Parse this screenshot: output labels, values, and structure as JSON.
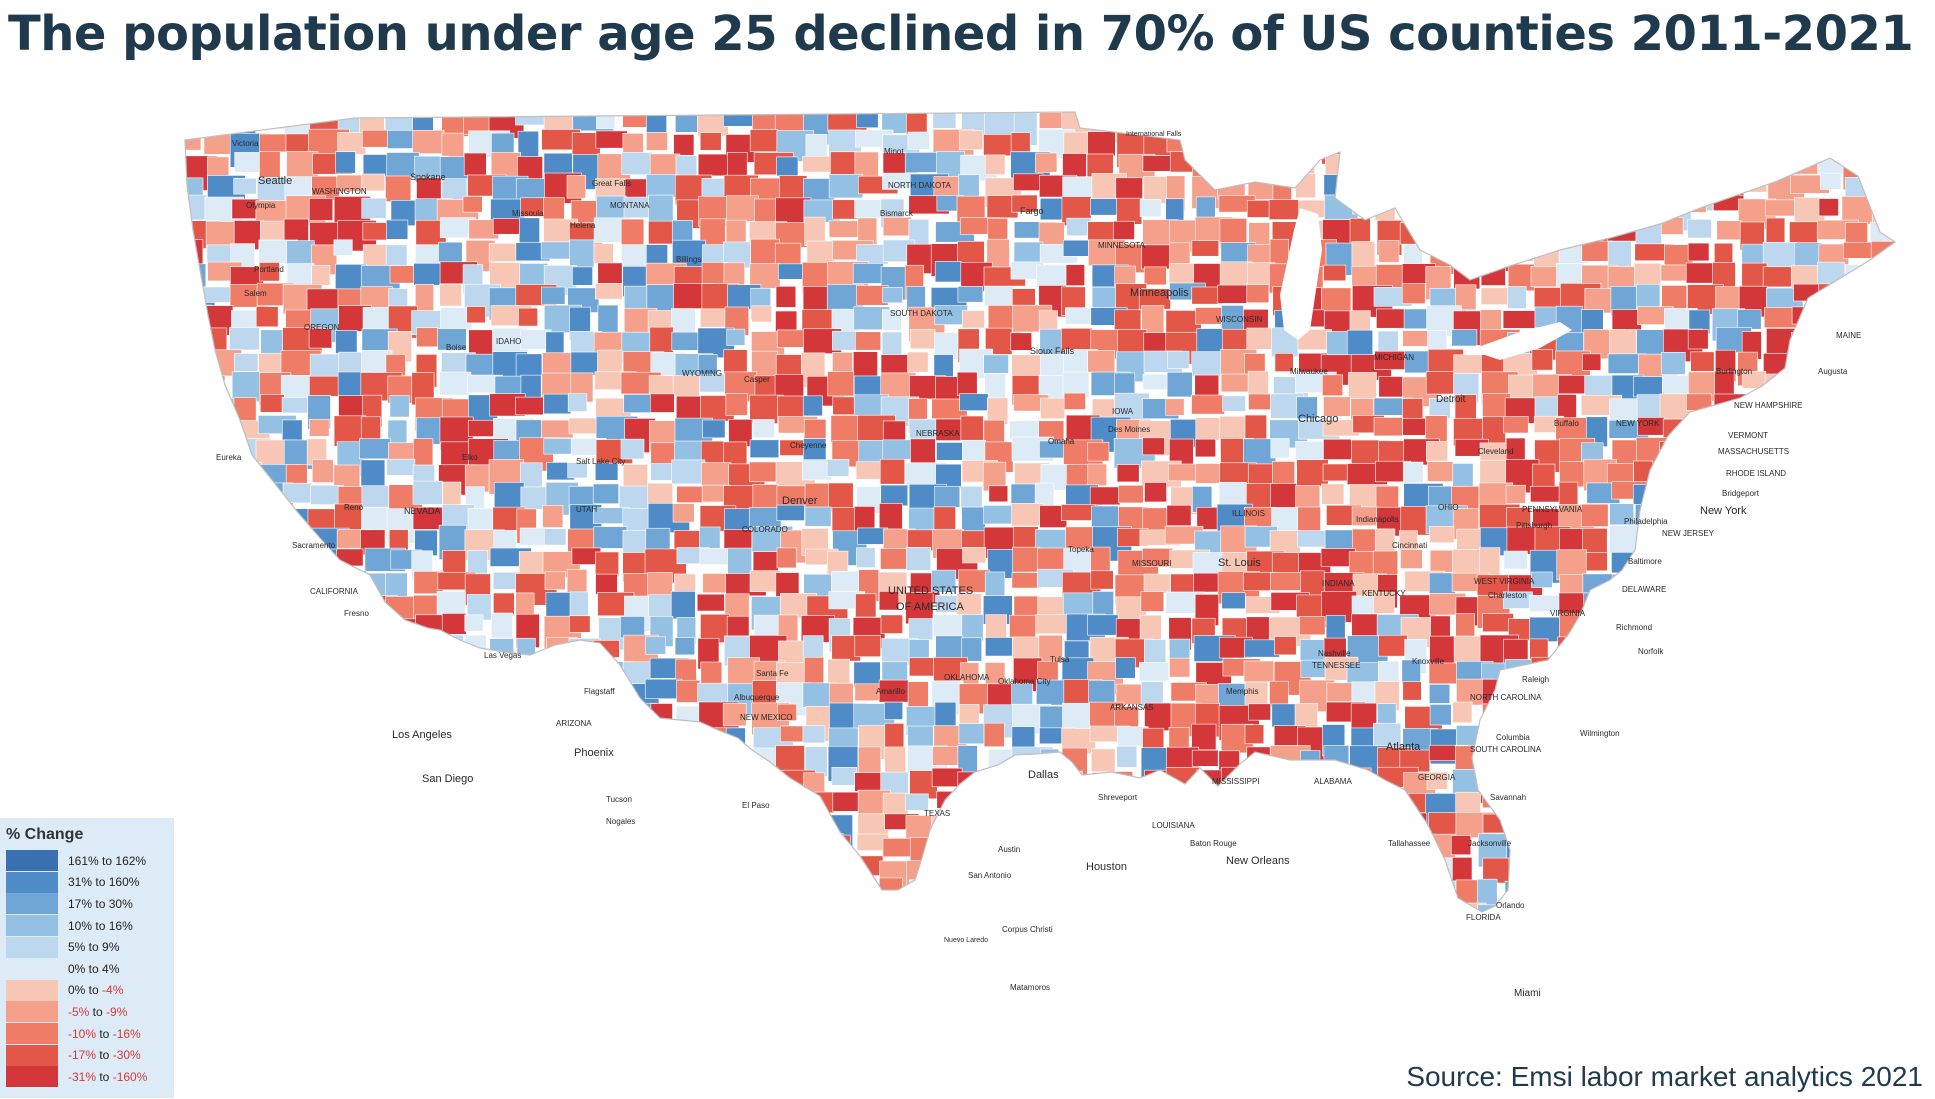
{
  "title": "The population under age 25 declined in 70% of US counties 2011-2021",
  "source": "Source: Emsi labor market analytics 2021",
  "legend": {
    "title": "% Change",
    "items": [
      {
        "from": "161%",
        "to": "162%",
        "neg": false,
        "color": "#3a6fb0"
      },
      {
        "from": "31%",
        "to": "160%",
        "neg": false,
        "color": "#4f8bc7"
      },
      {
        "from": "17%",
        "to": "30%",
        "neg": false,
        "color": "#6fa6d6"
      },
      {
        "from": "10%",
        "to": "16%",
        "neg": false,
        "color": "#94c0e3"
      },
      {
        "from": "5%",
        "to": "9%",
        "neg": false,
        "color": "#bcd7ee"
      },
      {
        "from": "0%",
        "to": "4%",
        "neg": false,
        "color": "#dcebf6"
      },
      {
        "from": "0%",
        "to": "-4%",
        "neg": true,
        "color": "#f7c6b4"
      },
      {
        "from": "-5%",
        "to": "-9%",
        "neg": true,
        "color": "#f5a08a"
      },
      {
        "from": "-10%",
        "to": "-16%",
        "neg": true,
        "color": "#ef7c66"
      },
      {
        "from": "-17%",
        "to": "-30%",
        "neg": true,
        "color": "#e25747"
      },
      {
        "from": "-31%",
        "to": "-160%",
        "neg": true,
        "color": "#d3373a"
      }
    ],
    "connector": "to"
  },
  "map": {
    "labels": [
      "Victoria",
      "Seattle",
      "WASHINGTON",
      "Olympia",
      "Spokane",
      "Great Falls",
      "MONTANA",
      "Missoula",
      "Helena",
      "Billings",
      "Minot",
      "NORTH DAKOTA",
      "Bismarck",
      "Fargo",
      "International Falls",
      "MINNESOTA",
      "Minneapolis",
      "Portland",
      "Salem",
      "OREGON",
      "IDAHO",
      "Boise",
      "WYOMING",
      "Casper",
      "SOUTH DAKOTA",
      "Sioux Falls",
      "WISCONSIN",
      "Milwaukee",
      "MICHIGAN",
      "Detroit",
      "Chicago",
      "IOWA",
      "Des Moines",
      "NEBRASKA",
      "Omaha",
      "Cheyenne",
      "Denver",
      "COLORADO",
      "Salt Lake City",
      "UTAH",
      "NEVADA",
      "Elko",
      "Reno",
      "Eureka",
      "Sacramento",
      "CALIFORNIA",
      "Fresno",
      "Las Vegas",
      "Flagstaff",
      "ARIZONA",
      "Phoenix",
      "Los Angeles",
      "San Diego",
      "Tucson",
      "Nogales",
      "Santa Fe",
      "Albuquerque",
      "NEW MEXICO",
      "El Paso",
      "Amarillo",
      "OKLAHOMA",
      "Oklahoma City",
      "Tulsa",
      "Topeka",
      "MISSOURI",
      "St. Louis",
      "ILLINOIS",
      "Indianapolis",
      "INDIANA",
      "OHIO",
      "Cleveland",
      "Cincinnati",
      "KENTUCKY",
      "TENNESSEE",
      "Nashville",
      "Knoxville",
      "Memphis",
      "ARKANSAS",
      "Dallas",
      "TEXAS",
      "Austin",
      "San Antonio",
      "Houston",
      "Corpus Christi",
      "Nuevo Laredo",
      "Matamoros",
      "Shreveport",
      "LOUISIANA",
      "Baton Rouge",
      "New Orleans",
      "MISSISSIPPI",
      "ALABAMA",
      "Atlanta",
      "GEORGIA",
      "Tallahassee",
      "Jacksonville",
      "Orlando",
      "FLORIDA",
      "Miami",
      "Savannah",
      "Columbia",
      "SOUTH CAROLINA",
      "NORTH CAROLINA",
      "Raleigh",
      "Wilmington",
      "Richmond",
      "Norfolk",
      "VIRGINIA",
      "WEST VIRGINIA",
      "Charleston",
      "Baltimore",
      "DELAWARE",
      "Philadelphia",
      "NEW JERSEY",
      "PENNSYLVANIA",
      "Pittsburgh",
      "Buffalo",
      "NEW YORK",
      "New York",
      "Bridgeport",
      "RHODE ISLAND",
      "MASSACHUSETTS",
      "VERMONT",
      "NEW HAMPSHIRE",
      "Burlington",
      "MAINE",
      "Augusta",
      "UNITED STATES",
      "OF AMERICA"
    ]
  }
}
